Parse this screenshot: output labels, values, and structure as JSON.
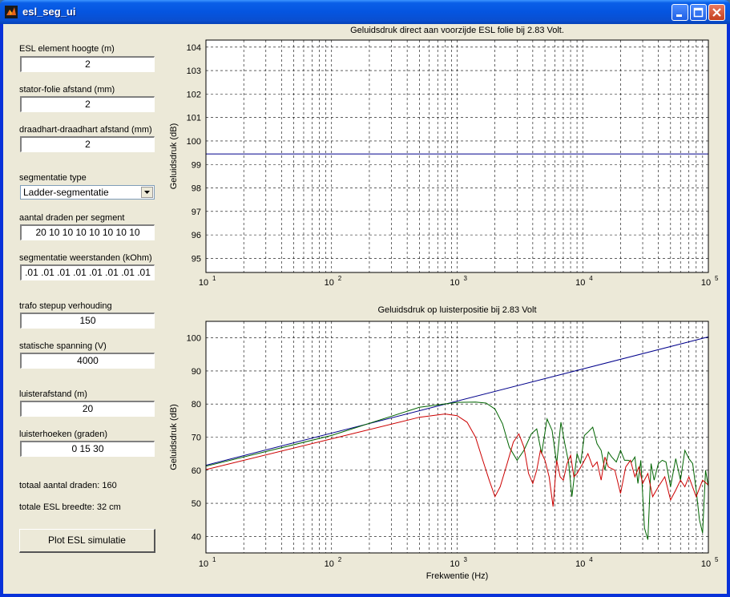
{
  "window": {
    "title": "esl_seg_ui"
  },
  "form": {
    "hoogte_label": "ESL element hoogte (m)",
    "hoogte_value": "2",
    "afstand_label": "stator-folie afstand (mm)",
    "afstand_value": "2",
    "draad_label": "draadhart-draadhart afstand (mm)",
    "draad_value": "2",
    "segtype_label": "segmentatie type",
    "segtype_value": "Ladder-segmentatie",
    "aantal_label": "aantal draden per segment",
    "aantal_value": "20 10 10 10 10 10 10 10",
    "weerstand_label": "segmentatie weerstanden (kOhm)",
    "weerstand_value": ".01 .01 .01 .01 .01 .01 .01 .01",
    "trafo_label": "trafo stepup verhouding",
    "trafo_value": "150",
    "spanning_label": "statische spanning (V)",
    "spanning_value": "4000",
    "luisterafstand_label": "luisterafstand (m)",
    "luisterafstand_value": "20",
    "luisterhoeken_label": "luisterhoeken (graden)",
    "luisterhoeken_value": "0 15 30",
    "totaal_text": "totaal aantal draden: 160",
    "breedte_text": "totale ESL breedte: 32 cm",
    "plot_button": "Plot ESL simulatie"
  },
  "chart_data": [
    {
      "type": "line",
      "title": "Geluidsdruk direct aan voorzijde ESL folie bij 2.83 Volt.",
      "xlabel": "",
      "ylabel": "Geluidsdruk (dB)",
      "xscale": "log",
      "xlim": [
        10,
        100000
      ],
      "ylim": [
        94.4,
        104.3
      ],
      "yticks": [
        95,
        96,
        97,
        98,
        99,
        100,
        101,
        102,
        103,
        104
      ],
      "xtick_labels": [
        "10",
        "10",
        "10",
        "10",
        "10"
      ],
      "xtick_exponents": [
        "1",
        "2",
        "3",
        "4",
        "5"
      ],
      "grid": true,
      "series": [
        {
          "color": "#00008b",
          "x": [
            10,
            100000
          ],
          "y": [
            99.45,
            99.45
          ]
        }
      ]
    },
    {
      "type": "line",
      "title": "Geluidsdruk op luisterpositie bij 2.83 Volt",
      "xlabel": "Frekwentie (Hz)",
      "ylabel": "Geluidsdruk (dB)",
      "xscale": "log",
      "xlim": [
        10,
        100000
      ],
      "ylim": [
        35,
        105
      ],
      "yticks": [
        40,
        50,
        60,
        70,
        80,
        90,
        100
      ],
      "xtick_labels": [
        "10",
        "10",
        "10",
        "10",
        "10"
      ],
      "xtick_exponents": [
        "1",
        "2",
        "3",
        "4",
        "5"
      ],
      "grid": true,
      "series": [
        {
          "color": "#00008b",
          "x": [
            10,
            100000
          ],
          "y": [
            61.5,
            100.3
          ]
        },
        {
          "color": "#006400",
          "x": [
            10,
            100,
            500,
            1000,
            1400,
            1700,
            2000,
            2300,
            2600,
            3000,
            3400,
            3900,
            4300,
            4700,
            5200,
            5700,
            6200,
            6700,
            7200,
            7700,
            8200,
            9000,
            9600,
            10300,
            11000,
            12000,
            13000,
            14000,
            15000,
            16000,
            17000,
            18500,
            20000,
            21500,
            23000,
            24500,
            26000,
            27500,
            29000,
            31000,
            33000,
            35000,
            37000,
            40000,
            43000,
            46000,
            50000,
            55000,
            60000,
            65000,
            70000,
            75000,
            80000,
            85000,
            90000,
            95000,
            100000
          ],
          "y": [
            61.2,
            70.5,
            79.0,
            80.5,
            80.6,
            80.3,
            78.5,
            74.0,
            67.0,
            63.0,
            66.0,
            71.0,
            72.5,
            65.0,
            75.5,
            72.0,
            62.0,
            74.5,
            68.0,
            62.5,
            52.0,
            65.0,
            62.0,
            70.5,
            71.5,
            73.0,
            68.0,
            66.0,
            60.0,
            65.5,
            64.0,
            62.5,
            66.0,
            63.0,
            63.0,
            62.5,
            64.0,
            56.0,
            63.0,
            42.5,
            39.0,
            62.0,
            57.0,
            62.0,
            63.0,
            62.5,
            55.0,
            63.5,
            57.0,
            66.0,
            63.5,
            62.0,
            54.0,
            45.0,
            41.0,
            60.0,
            55.0
          ]
        },
        {
          "color": "#cc0000",
          "x": [
            10,
            100,
            500,
            800,
            1000,
            1200,
            1400,
            1600,
            1800,
            2000,
            2200,
            2500,
            2800,
            3100,
            3400,
            3700,
            4000,
            4300,
            4600,
            5000,
            5400,
            5800,
            6200,
            6600,
            7000,
            7500,
            8000,
            8500,
            9000,
            10000,
            11000,
            12000,
            13000,
            14000,
            15000,
            16000,
            18000,
            20000,
            22000,
            24000,
            26000,
            28000,
            30000,
            33000,
            36000,
            40000,
            45000,
            50000,
            55000,
            60000,
            65000,
            70000,
            80000,
            90000,
            100000
          ],
          "y": [
            60.2,
            69.5,
            76.0,
            77.0,
            76.5,
            74.5,
            70.0,
            63.0,
            57.0,
            52.0,
            55.0,
            62.0,
            68.5,
            71.0,
            67.0,
            59.0,
            56.0,
            60.0,
            66.0,
            63.0,
            58.0,
            49.0,
            63.0,
            58.0,
            57.0,
            62.0,
            64.5,
            58.0,
            59.0,
            62.0,
            65.0,
            61.0,
            62.5,
            57.0,
            64.0,
            61.0,
            60.0,
            53.0,
            61.0,
            63.0,
            58.0,
            61.0,
            56.0,
            59.0,
            52.0,
            55.0,
            58.0,
            51.0,
            54.0,
            57.0,
            55.0,
            58.0,
            52.0,
            57.0,
            55.5
          ]
        }
      ]
    }
  ]
}
